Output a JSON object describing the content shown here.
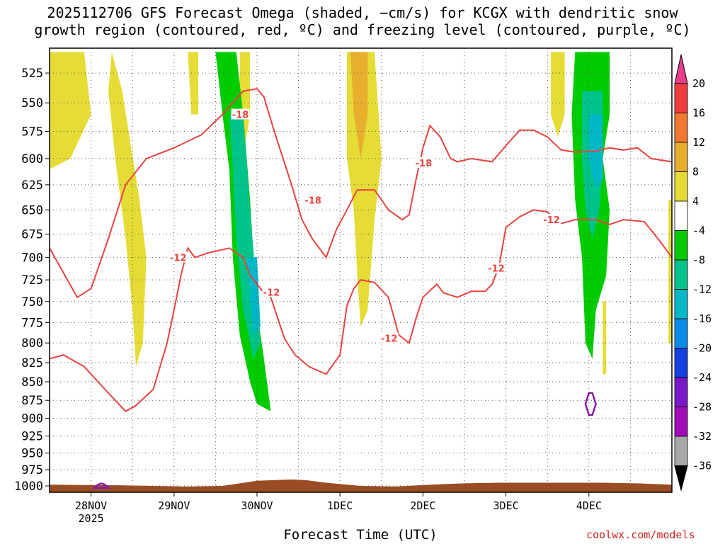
{
  "title_line1": "2025112706 GFS Forecast Omega (shaded, −cm/s) for KCGX with dendritic snow",
  "title_line2": "growth region (contoured, red, ºC) and freezing level (contoured, purple, ºC)",
  "watermark": "coolwx.com/models",
  "chart_data": {
    "type": "heatmap",
    "xlabel": "Forecast Time (UTC)",
    "ylabel": "",
    "x_ticks": [
      {
        "label": "28NOV",
        "sublabel": "2025",
        "time_h": 12
      },
      {
        "label": "29NOV",
        "sublabel": "",
        "time_h": 36
      },
      {
        "label": "30NOV",
        "sublabel": "",
        "time_h": 60
      },
      {
        "label": "1DEC",
        "sublabel": "",
        "time_h": 84
      },
      {
        "label": "2DEC",
        "sublabel": "",
        "time_h": 108
      },
      {
        "label": "3DEC",
        "sublabel": "",
        "time_h": 132
      },
      {
        "label": "4DEC",
        "sublabel": "",
        "time_h": 156
      }
    ],
    "x_range_h": [
      0,
      180
    ],
    "y_ticks": [
      525,
      550,
      575,
      600,
      625,
      650,
      675,
      700,
      725,
      750,
      775,
      800,
      825,
      850,
      875,
      900,
      925,
      950,
      975,
      1000
    ],
    "y_range_hpa": [
      505,
      1010
    ],
    "y_scale": "log-pressure",
    "grid": "dotted",
    "colorbar": {
      "ticks": [
        "20",
        "16",
        "12",
        "8",
        "4",
        "-4",
        "-8",
        "-12",
        "-16",
        "-20",
        "-24",
        "-28",
        "-32",
        "-36"
      ],
      "colors": [
        "#e83c8c",
        "#f03c3c",
        "#f07830",
        "#e8ae2e",
        "#e6dc36",
        "#ffffff",
        "#00cc00",
        "#00c48a",
        "#00b8c8",
        "#0a8ce8",
        "#1440e0",
        "#7a18c8",
        "#a20cb8",
        "#a8a8a8",
        "#000000"
      ]
    },
    "omega_regions": [
      {
        "level": "4 to 8",
        "color": "#e6dc36",
        "points": [
          [
            0,
            508
          ],
          [
            10,
            508
          ],
          [
            12,
            560
          ],
          [
            6,
            600
          ],
          [
            0,
            610
          ]
        ]
      },
      {
        "level": "4 to 8",
        "color": "#e6dc36",
        "points": [
          [
            18,
            508
          ],
          [
            21,
            540
          ],
          [
            26,
            640
          ],
          [
            28,
            700
          ],
          [
            27,
            800
          ],
          [
            25,
            830
          ],
          [
            24,
            760
          ],
          [
            22,
            680
          ],
          [
            19,
            600
          ],
          [
            17,
            540
          ]
        ]
      },
      {
        "level": "4 to 8",
        "color": "#e6dc36",
        "points": [
          [
            40,
            508
          ],
          [
            43,
            508
          ],
          [
            43,
            560
          ],
          [
            41,
            560
          ]
        ]
      },
      {
        "level": "4 to 8",
        "color": "#e6dc36",
        "points": [
          [
            55,
            508
          ],
          [
            58,
            508
          ],
          [
            58,
            560
          ],
          [
            56,
            600
          ],
          [
            55,
            560
          ]
        ]
      },
      {
        "level": "4 to 8",
        "color": "#e6dc36",
        "points": [
          [
            86,
            508
          ],
          [
            94,
            508
          ],
          [
            96,
            600
          ],
          [
            94,
            660
          ],
          [
            92,
            760
          ],
          [
            90,
            780
          ],
          [
            89,
            720
          ],
          [
            88,
            650
          ],
          [
            86,
            600
          ]
        ]
      },
      {
        "level": "8 to 12",
        "color": "#e8ae2e",
        "points": [
          [
            87,
            508
          ],
          [
            92,
            508
          ],
          [
            92,
            560
          ],
          [
            90,
            600
          ],
          [
            88,
            560
          ]
        ]
      },
      {
        "level": "4 to 8",
        "color": "#e6dc36",
        "points": [
          [
            145,
            508
          ],
          [
            149,
            508
          ],
          [
            149,
            560
          ],
          [
            147,
            580
          ],
          [
            145,
            560
          ]
        ]
      },
      {
        "level": "4 to 8",
        "color": "#e6dc36",
        "points": [
          [
            160,
            750
          ],
          [
            161,
            750
          ],
          [
            161,
            840
          ],
          [
            160,
            840
          ]
        ]
      },
      {
        "level": "4 to 8",
        "color": "#e6dc36",
        "points": [
          [
            179,
            640
          ],
          [
            181,
            640
          ],
          [
            181,
            800
          ],
          [
            179,
            800
          ]
        ]
      },
      {
        "level": "-4 to -8",
        "color": "#00cc00",
        "points": [
          [
            48,
            508
          ],
          [
            54,
            508
          ],
          [
            56,
            560
          ],
          [
            58,
            640
          ],
          [
            59,
            700
          ],
          [
            60,
            760
          ],
          [
            62,
            820
          ],
          [
            64,
            890
          ],
          [
            60,
            880
          ],
          [
            58,
            850
          ],
          [
            55,
            790
          ],
          [
            53,
            700
          ],
          [
            52,
            610
          ],
          [
            50,
            560
          ]
        ]
      },
      {
        "level": "-8 to -12",
        "color": "#00c48a",
        "points": [
          [
            52,
            560
          ],
          [
            56,
            560
          ],
          [
            58,
            650
          ],
          [
            60,
            740
          ],
          [
            61,
            800
          ],
          [
            59,
            820
          ],
          [
            56,
            760
          ],
          [
            54,
            680
          ],
          [
            53,
            610
          ]
        ]
      },
      {
        "level": "-12 to -16",
        "color": "#00b8c8",
        "points": [
          [
            57,
            700
          ],
          [
            60,
            700
          ],
          [
            61,
            780
          ],
          [
            59,
            790
          ]
        ]
      },
      {
        "level": "-4 to -8",
        "color": "#00cc00",
        "points": [
          [
            152,
            508
          ],
          [
            162,
            508
          ],
          [
            162,
            560
          ],
          [
            160,
            600
          ],
          [
            162,
            650
          ],
          [
            161,
            720
          ],
          [
            158,
            760
          ],
          [
            157,
            820
          ],
          [
            155,
            800
          ],
          [
            154,
            700
          ],
          [
            152,
            640
          ],
          [
            151,
            560
          ]
        ]
      },
      {
        "level": "-8 to -12",
        "color": "#00c48a",
        "points": [
          [
            154,
            540
          ],
          [
            160,
            540
          ],
          [
            160,
            600
          ],
          [
            159,
            650
          ],
          [
            157,
            680
          ],
          [
            155,
            650
          ],
          [
            154,
            600
          ]
        ]
      },
      {
        "level": "-12 to -16",
        "color": "#00b8c8",
        "points": [
          [
            156,
            560
          ],
          [
            160,
            560
          ],
          [
            160,
            620
          ],
          [
            158,
            630
          ],
          [
            156,
            600
          ]
        ]
      }
    ],
    "dgz_contours": [
      {
        "label": "-18",
        "label_positions": [
          [
            55,
            560
          ],
          [
            76,
            640
          ],
          [
            108,
            604
          ]
        ],
        "points": [
          [
            0,
            690
          ],
          [
            8,
            745
          ],
          [
            12,
            735
          ],
          [
            17,
            680
          ],
          [
            22,
            625
          ],
          [
            28,
            600
          ],
          [
            36,
            590
          ],
          [
            44,
            578
          ],
          [
            50,
            560
          ],
          [
            56,
            540
          ],
          [
            60,
            538
          ],
          [
            62,
            545
          ],
          [
            65,
            575
          ],
          [
            70,
            625
          ],
          [
            73,
            660
          ],
          [
            76,
            680
          ],
          [
            80,
            700
          ],
          [
            83,
            670
          ],
          [
            86,
            650
          ],
          [
            89,
            630
          ],
          [
            94,
            630
          ],
          [
            98,
            650
          ],
          [
            102,
            660
          ],
          [
            104,
            655
          ],
          [
            106,
            620
          ],
          [
            108,
            590
          ],
          [
            110,
            570
          ],
          [
            113,
            580
          ],
          [
            116,
            600
          ],
          [
            118,
            603
          ],
          [
            122,
            600
          ],
          [
            128,
            603
          ],
          [
            132,
            588
          ],
          [
            136,
            574
          ],
          [
            140,
            574
          ],
          [
            144,
            580
          ],
          [
            148,
            592
          ],
          [
            152,
            594
          ],
          [
            158,
            593
          ],
          [
            162,
            590
          ],
          [
            166,
            592
          ],
          [
            170,
            590
          ],
          [
            174,
            600
          ],
          [
            180,
            603
          ]
        ]
      },
      {
        "label": "-12",
        "label_positions": [
          [
            37,
            700
          ],
          [
            64,
            739
          ],
          [
            98,
            794
          ],
          [
            129,
            712
          ],
          [
            145,
            660
          ]
        ],
        "points": [
          [
            0,
            820
          ],
          [
            4,
            815
          ],
          [
            10,
            830
          ],
          [
            14,
            850
          ],
          [
            18,
            870
          ],
          [
            22,
            890
          ],
          [
            25,
            882
          ],
          [
            30,
            860
          ],
          [
            34,
            800
          ],
          [
            36,
            760
          ],
          [
            38,
            720
          ],
          [
            40,
            690
          ],
          [
            42,
            700
          ],
          [
            46,
            695
          ],
          [
            52,
            690
          ],
          [
            56,
            700
          ],
          [
            58,
            720
          ],
          [
            62,
            740
          ],
          [
            64,
            745
          ],
          [
            66,
            770
          ],
          [
            68,
            795
          ],
          [
            71,
            815
          ],
          [
            75,
            830
          ],
          [
            80,
            840
          ],
          [
            84,
            815
          ],
          [
            86,
            755
          ],
          [
            88,
            735
          ],
          [
            90,
            725
          ],
          [
            94,
            728
          ],
          [
            98,
            745
          ],
          [
            101,
            790
          ],
          [
            104,
            800
          ],
          [
            106,
            770
          ],
          [
            108,
            745
          ],
          [
            112,
            730
          ],
          [
            114,
            740
          ],
          [
            118,
            745
          ],
          [
            122,
            738
          ],
          [
            126,
            738
          ],
          [
            128,
            730
          ],
          [
            130,
            710
          ],
          [
            132,
            668
          ],
          [
            136,
            657
          ],
          [
            140,
            650
          ],
          [
            144,
            652
          ],
          [
            146,
            660
          ],
          [
            148,
            664
          ],
          [
            152,
            660
          ],
          [
            158,
            660
          ],
          [
            162,
            665
          ],
          [
            166,
            660
          ],
          [
            172,
            662
          ],
          [
            176,
            680
          ],
          [
            180,
            700
          ]
        ]
      }
    ],
    "freezing_level_contours": [
      {
        "points": [
          [
            156,
            865
          ],
          [
            157,
            865
          ],
          [
            158,
            880
          ],
          [
            157,
            895
          ],
          [
            156,
            895
          ],
          [
            155,
            880
          ]
        ]
      },
      {
        "points": [
          [
            13,
            1003
          ],
          [
            14,
            998
          ],
          [
            15,
            996
          ],
          [
            16,
            998
          ],
          [
            17,
            1003
          ]
        ]
      }
    ],
    "terrain_top_hpa": [
      [
        0,
        998
      ],
      [
        20,
        999
      ],
      [
        40,
        1001
      ],
      [
        50,
        1000
      ],
      [
        60,
        992
      ],
      [
        70,
        990
      ],
      [
        74,
        991
      ],
      [
        80,
        995
      ],
      [
        90,
        1000
      ],
      [
        100,
        1001
      ],
      [
        110,
        998
      ],
      [
        120,
        996
      ],
      [
        130,
        995
      ],
      [
        140,
        995
      ],
      [
        150,
        995
      ],
      [
        160,
        995
      ],
      [
        170,
        996
      ],
      [
        180,
        998
      ]
    ]
  }
}
